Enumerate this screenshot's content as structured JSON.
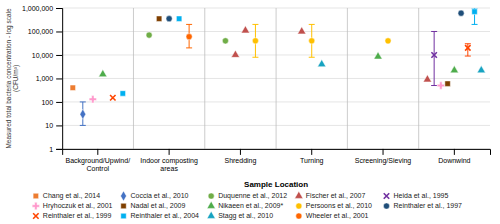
{
  "chart_data": {
    "type": "scatter",
    "xlabel": "Sample Location",
    "ylabel": "Measured total bacteria concentration - log scale (CFU/m³)",
    "categories": [
      "Background/Upwind/Control",
      "Indoor composting areas",
      "Shredding",
      "Turning",
      "Screening/Sieving",
      "Downwind"
    ],
    "log": "y",
    "ylim": [
      1,
      1000000
    ],
    "yticks": [
      1,
      10,
      100,
      {
        "value": 1000,
        "label": "1,000"
      },
      {
        "value": 10000,
        "label": "10,000"
      },
      {
        "value": 100000,
        "label": "100,000"
      },
      {
        "value": 1000000,
        "label": "1,000,000"
      }
    ],
    "grid": true,
    "legend": "bottom",
    "series": [
      {
        "name": "Chang et al., 2014",
        "color": "#ED7D31",
        "marker": "square",
        "x": [
          "Background/Upwind/Control"
        ],
        "values": [
          400
        ],
        "y_low": [
          null
        ],
        "y_high": [
          null
        ]
      },
      {
        "name": "Coccia et al., 2010",
        "color": "#4472C4",
        "marker": "diamond",
        "x": [
          "Background/Upwind/Control"
        ],
        "values": [
          30
        ],
        "y_low": [
          10
        ],
        "y_high": [
          100
        ]
      },
      {
        "name": "Duquenne et al., 2012",
        "color": "#70AD47",
        "marker": "circle",
        "x": [
          "Indoor composting areas",
          "Shredding"
        ],
        "values": [
          70000,
          40000
        ],
        "y_low": [
          null,
          null
        ],
        "y_high": [
          null,
          null
        ]
      },
      {
        "name": "Fischer et al., 2007",
        "color": "#C0504D",
        "marker": "triangle",
        "x": [
          "Shredding",
          "Shredding",
          "Turning",
          "Downwind"
        ],
        "values": [
          10000,
          110000,
          100000,
          900
        ],
        "y_low": [
          null,
          null,
          null,
          null
        ],
        "y_high": [
          null,
          null,
          null,
          null
        ]
      },
      {
        "name": "Heida et al., 1995",
        "color": "#7030A0",
        "marker": "x",
        "x": [
          "Downwind"
        ],
        "values": [
          10000
        ],
        "y_low": [
          500
        ],
        "y_high": [
          100000
        ]
      },
      {
        "name": "Hryhoczuk et al., 2001",
        "color": "#FF99CC",
        "marker": "plus",
        "x": [
          "Background/Upwind/Control",
          "Downwind"
        ],
        "values": [
          130,
          500
        ],
        "y_low": [
          null,
          null
        ],
        "y_high": [
          null,
          null
        ]
      },
      {
        "name": "Nadal et al., 2009",
        "color": "#7F3F00",
        "marker": "square",
        "x": [
          "Indoor composting areas",
          "Downwind"
        ],
        "values": [
          350000,
          600
        ],
        "y_low": [
          null,
          null
        ],
        "y_high": [
          null,
          null
        ]
      },
      {
        "name": "Nikaeen et al., 2009*",
        "color": "#4EAC4B",
        "marker": "triangle",
        "x": [
          "Background/Upwind/Control",
          "Screening/Sieving",
          "Downwind"
        ],
        "values": [
          1500,
          8500,
          2200
        ],
        "y_low": [
          null,
          null,
          null
        ],
        "y_high": [
          null,
          null,
          null
        ]
      },
      {
        "name": "Persoons et al., 2010",
        "color": "#FFC000",
        "marker": "circle",
        "x": [
          "Shredding",
          "Turning",
          "Screening/Sieving"
        ],
        "values": [
          40000,
          40000,
          40000
        ],
        "y_low": [
          8000,
          8000,
          null
        ],
        "y_high": [
          200000,
          200000,
          null
        ]
      },
      {
        "name": "Reinthaler et al., 1997",
        "color": "#1F4E79",
        "marker": "circle",
        "x": [
          "Indoor composting areas",
          "Downwind"
        ],
        "values": [
          350000,
          600000
        ],
        "y_low": [
          null,
          null
        ],
        "y_high": [
          null,
          null
        ]
      },
      {
        "name": "Reinthaler et al., 1999",
        "color": "#FF4500",
        "marker": "x",
        "x": [
          "Background/Upwind/Control",
          "Downwind"
        ],
        "values": [
          150,
          20000
        ],
        "y_low": [
          null,
          9000
        ],
        "y_high": [
          null,
          30000
        ]
      },
      {
        "name": "Reinthaler et al., 2004",
        "color": "#00B0F0",
        "marker": "square",
        "x": [
          "Indoor composting areas",
          "Background/Upwind/Control",
          "Downwind"
        ],
        "values": [
          350000,
          230,
          700000
        ],
        "y_low": [
          null,
          null,
          200000
        ],
        "y_high": [
          null,
          null,
          1000000
        ]
      },
      {
        "name": "Stagg et al., 2010",
        "color": "#17A3C1",
        "marker": "triangle",
        "x": [
          "Turning",
          "Downwind"
        ],
        "values": [
          4000,
          2200
        ],
        "y_low": [
          null,
          null
        ],
        "y_high": [
          null,
          null
        ]
      },
      {
        "name": "Wheeler et al., 2001",
        "color": "#FF6600",
        "marker": "circle",
        "x": [
          "Indoor composting areas"
        ],
        "values": [
          60000
        ],
        "y_low": [
          20000
        ],
        "y_high": [
          200000
        ]
      }
    ]
  }
}
